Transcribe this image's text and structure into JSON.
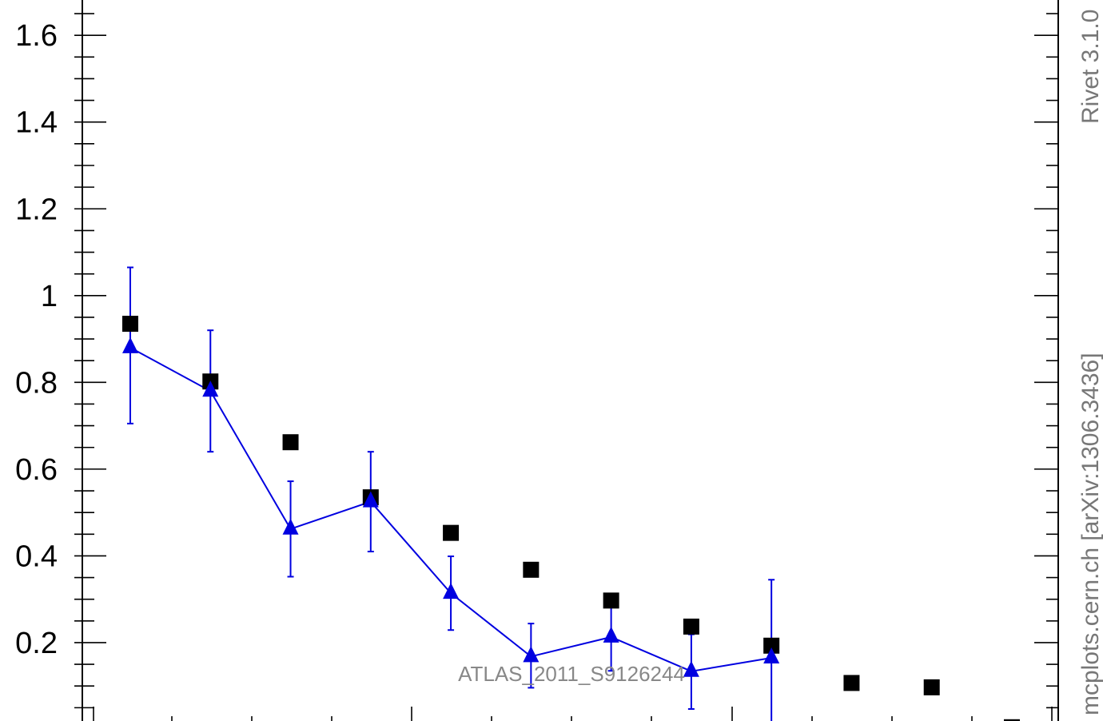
{
  "chart_data": {
    "type": "scatter",
    "x": [
      1,
      2,
      3,
      4,
      5,
      6,
      7,
      8,
      9,
      10,
      11,
      12
    ],
    "series": [
      {
        "marker": "square",
        "color": "#000000",
        "values": [
          0.935,
          0.802,
          0.662,
          0.535,
          0.453,
          0.368,
          0.297,
          0.237,
          0.193,
          0.107,
          0.097,
          0.005
        ]
      },
      {
        "marker": "triangle",
        "color": "#0000e0",
        "line": true,
        "values": [
          0.88,
          0.78,
          0.462,
          0.525,
          0.314,
          0.168,
          0.213,
          0.134,
          0.165
        ],
        "err_low": [
          0.175,
          0.14,
          0.11,
          0.115,
          0.085,
          0.072,
          0.078,
          0.087,
          0.17
        ],
        "err_high": [
          0.185,
          0.14,
          0.11,
          0.115,
          0.085,
          0.076,
          0.085,
          0.085,
          0.18
        ]
      }
    ],
    "y_ticks": [
      "0.2",
      "0.4",
      "0.6",
      "0.8",
      "1",
      "1.2",
      "1.4",
      "1.6"
    ],
    "ylim": [
      0,
      1.65
    ],
    "xlim": [
      0.5,
      12.5
    ],
    "grid": false
  },
  "annotations": {
    "analysis_id": "ATLAS_2011_S9126244",
    "right_label_top": "Rivet 3.1.0",
    "right_label_bottom": "mcplots.cern.ch [arXiv:1306.3436]"
  }
}
